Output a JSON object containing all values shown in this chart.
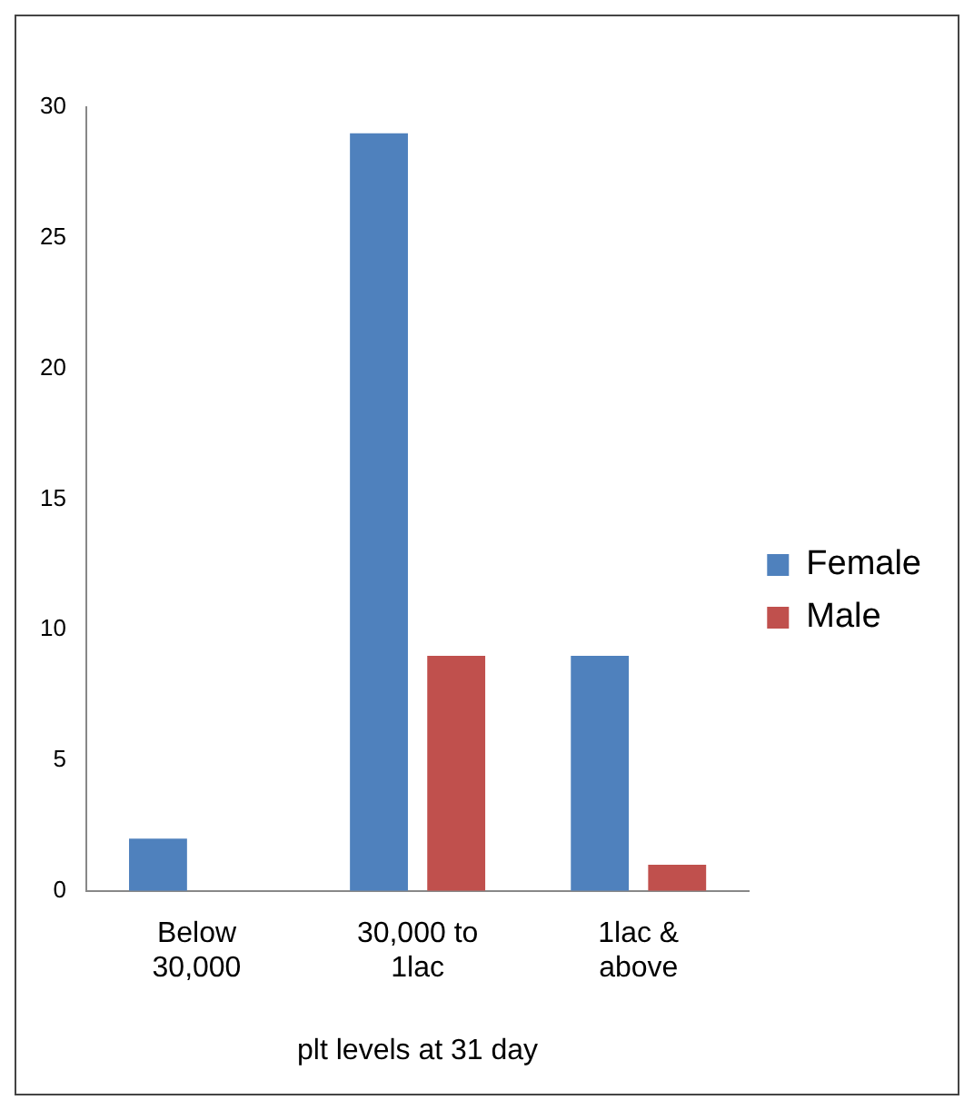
{
  "chart_data": {
    "type": "bar",
    "xlabel": "plt levels at 31 day",
    "categories": [
      "Below 30,000",
      "30,000 to 1lac",
      "1lac & above"
    ],
    "series": [
      {
        "name": "Female",
        "color": "#4f81bd",
        "values": [
          2,
          29,
          9
        ]
      },
      {
        "name": "Male",
        "color": "#c0504d",
        "values": [
          0,
          9,
          1
        ]
      }
    ],
    "ylim": [
      0,
      30
    ],
    "yticks": [
      0,
      5,
      10,
      15,
      20,
      25,
      30
    ],
    "grid": false,
    "legend": "right"
  }
}
